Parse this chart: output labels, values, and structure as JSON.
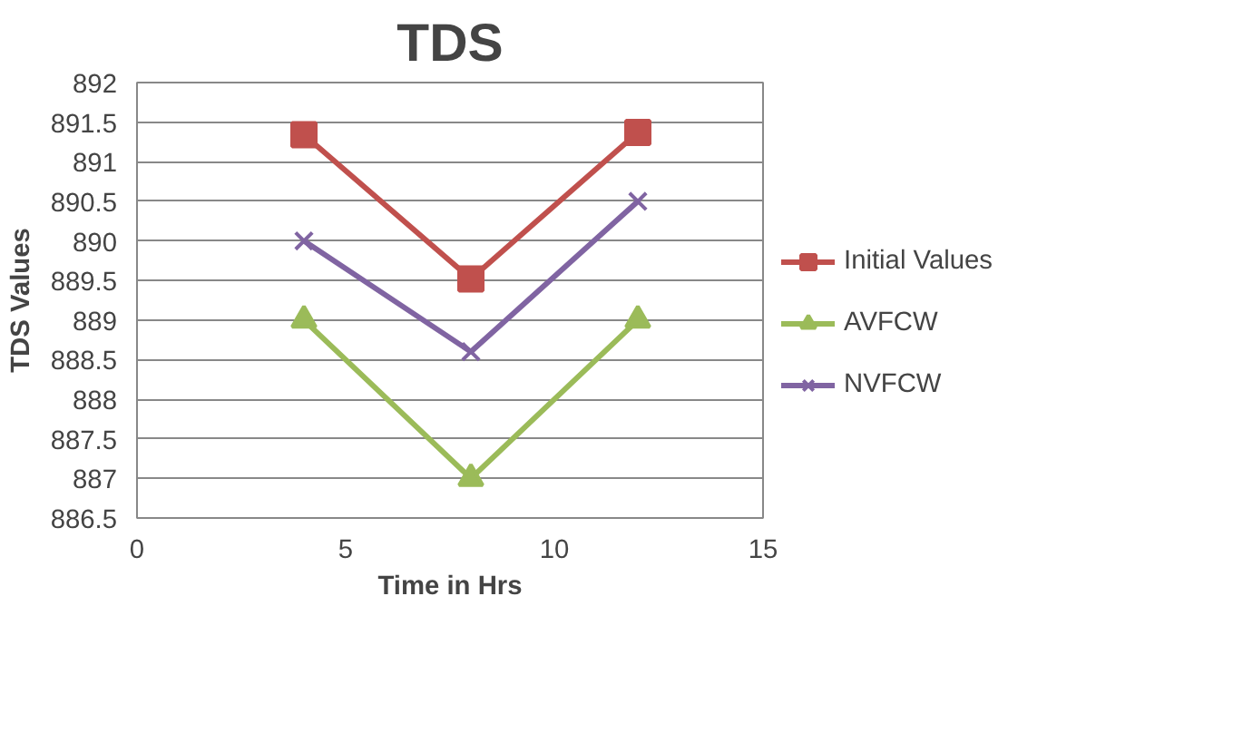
{
  "chart_data": {
    "type": "line",
    "title": "TDS",
    "xlabel": "Time in Hrs",
    "ylabel": "TDS Values",
    "x": [
      4,
      8,
      12
    ],
    "series": [
      {
        "name": "Initial Values",
        "color": "#c0504d",
        "marker": "square",
        "values": [
          891.34,
          889.52,
          891.37
        ]
      },
      {
        "name": "AVFCW",
        "color": "#9bbb59",
        "marker": "triangle",
        "values": [
          889,
          887,
          889
        ]
      },
      {
        "name": "NVFCW",
        "color": "#8064a2",
        "marker": "cross",
        "values": [
          890,
          888.6,
          890.5
        ]
      }
    ],
    "xlim": [
      0,
      15
    ],
    "xticks": [
      0,
      5,
      10,
      15
    ],
    "ylim": [
      886.5,
      892
    ],
    "yticks": [
      886.5,
      887,
      887.5,
      888,
      888.5,
      889,
      889.5,
      890,
      890.5,
      891,
      891.5,
      892
    ],
    "grid": "y",
    "legend": "right"
  }
}
